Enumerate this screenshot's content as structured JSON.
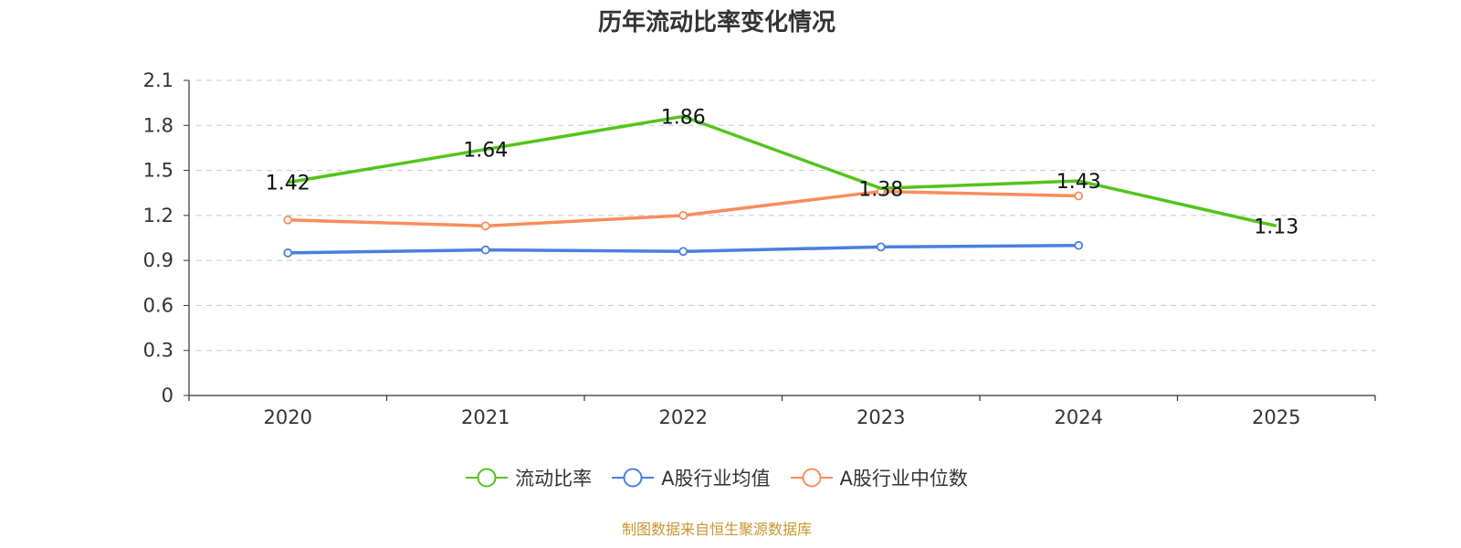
{
  "chart_data": {
    "type": "line",
    "title": "历年流动比率变化情况",
    "categories": [
      "2020",
      "2021",
      "2022",
      "2023",
      "2024",
      "2025"
    ],
    "yticks": [
      "0",
      "0.3",
      "0.6",
      "0.9",
      "1.2",
      "1.5",
      "1.8",
      "2.1"
    ],
    "ylim": [
      0,
      2.1
    ],
    "grid": true,
    "legend_position": "bottom",
    "series": [
      {
        "name": "流动比率",
        "color": "#52c41a",
        "values": [
          1.42,
          1.64,
          1.86,
          1.38,
          1.43,
          1.13
        ],
        "labels": [
          "1.42",
          "1.64",
          "1.86",
          "1.38",
          "1.43",
          "1.13"
        ]
      },
      {
        "name": "A股行业均值",
        "color": "#4a7fe0",
        "values": [
          0.95,
          0.97,
          0.96,
          0.99,
          1.0,
          null
        ]
      },
      {
        "name": "A股行业中位数",
        "color": "#fa8c5c",
        "values": [
          1.17,
          1.13,
          1.2,
          1.36,
          1.33,
          null
        ]
      }
    ]
  },
  "footer": {
    "source": "制图数据来自恒生聚源数据库"
  }
}
